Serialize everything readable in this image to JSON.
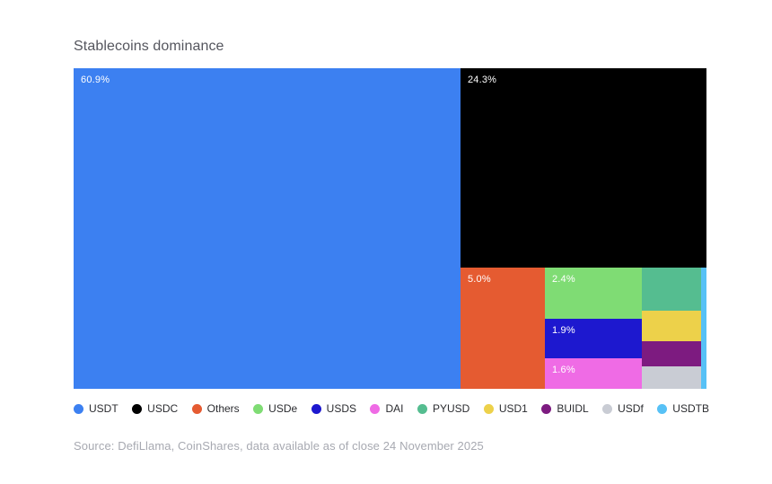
{
  "page": {
    "background_color": "#ffffff"
  },
  "header": {
    "title": "Stablecoins dominance"
  },
  "footer": {
    "source": "Source: DefiLlama, CoinShares, data available as of close 24 November 2025"
  },
  "chart_data": {
    "type": "treemap",
    "title": "Stablecoins dominance",
    "unit": "%",
    "legend_position": "bottom",
    "label_color": "#ffffff",
    "series": [
      {
        "name": "USDT",
        "value": 60.9,
        "label": "60.9%",
        "estimated": false,
        "color": "#3c80f1",
        "rect": {
          "x": 0,
          "y": 0,
          "w": 61.13,
          "h": 100
        }
      },
      {
        "name": "USDC",
        "value": 24.3,
        "label": "24.3%",
        "estimated": false,
        "color": "#000000",
        "rect": {
          "x": 61.13,
          "y": 0,
          "w": 38.87,
          "h": 62.18
        }
      },
      {
        "name": "Others",
        "value": 5.0,
        "label": "5.0%",
        "estimated": false,
        "color": "#e55b31",
        "rect": {
          "x": 61.13,
          "y": 62.18,
          "w": 13.33,
          "h": 37.82
        }
      },
      {
        "name": "USDe",
        "value": 2.4,
        "label": "2.4%",
        "estimated": false,
        "color": "#7fdc74",
        "rect": {
          "x": 74.46,
          "y": 62.18,
          "w": 15.26,
          "h": 15.97
        }
      },
      {
        "name": "USDS",
        "value": 1.9,
        "label": "1.9%",
        "estimated": false,
        "color": "#1d18cf",
        "rect": {
          "x": 74.46,
          "y": 78.15,
          "w": 15.26,
          "h": 12.32
        }
      },
      {
        "name": "DAI",
        "value": 1.6,
        "label": "1.6%",
        "estimated": false,
        "color": "#ef6be5",
        "rect": {
          "x": 74.46,
          "y": 90.47,
          "w": 15.26,
          "h": 9.53
        }
      },
      {
        "name": "PYUSD",
        "value": 1.3,
        "label": "",
        "estimated": true,
        "color": "#55bd90",
        "rect": {
          "x": 89.72,
          "y": 62.18,
          "w": 9.36,
          "h": 13.45
        }
      },
      {
        "name": "USD1",
        "value": 0.9,
        "label": "",
        "estimated": true,
        "color": "#edd14a",
        "rect": {
          "x": 89.72,
          "y": 75.63,
          "w": 9.36,
          "h": 9.52
        }
      },
      {
        "name": "BUIDL",
        "value": 0.7,
        "label": "",
        "estimated": true,
        "color": "#7d1b80",
        "rect": {
          "x": 89.72,
          "y": 85.15,
          "w": 9.36,
          "h": 7.84
        }
      },
      {
        "name": "USDf",
        "value": 0.7,
        "label": "",
        "estimated": true,
        "color": "#c9ccd4",
        "rect": {
          "x": 89.72,
          "y": 92.99,
          "w": 9.36,
          "h": 7.01
        }
      },
      {
        "name": "USDTB",
        "value": 0.3,
        "label": "",
        "estimated": true,
        "color": "#57c1f6",
        "rect": {
          "x": 99.08,
          "y": 62.18,
          "w": 0.92,
          "h": 37.82
        }
      }
    ]
  }
}
